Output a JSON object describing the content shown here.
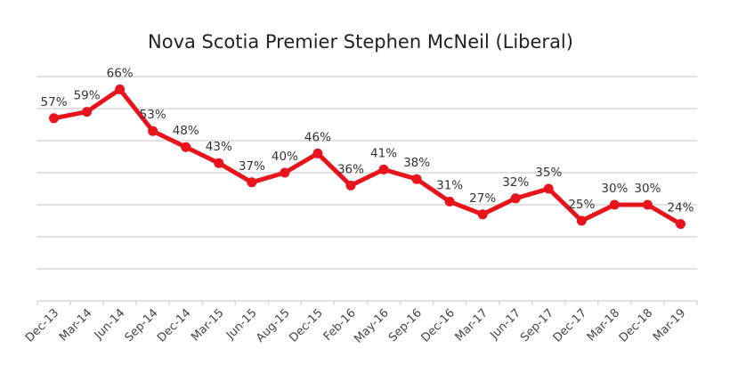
{
  "chart_data": {
    "type": "line",
    "title": "Nova Scotia Premier Stephen McNeil (Liberal)",
    "xlabel": "",
    "ylabel": "",
    "categories": [
      "Dec-13",
      "Mar-14",
      "Jun-14",
      "Sep-14",
      "Dec-14",
      "Mar-15",
      "Jun-15",
      "Aug-15",
      "Dec-15",
      "Feb-16",
      "May-16",
      "Sep-16",
      "Dec-16",
      "Mar-17",
      "Jun-17",
      "Sep-17",
      "Dec-17",
      "Mar-18",
      "Dec-18",
      "Mar-19"
    ],
    "values": [
      57,
      59,
      66,
      53,
      48,
      43,
      37,
      40,
      46,
      36,
      41,
      38,
      31,
      27,
      32,
      35,
      25,
      30,
      30,
      24
    ],
    "data_labels": [
      "57%",
      "59%",
      "66%",
      "53%",
      "48%",
      "43%",
      "37%",
      "40%",
      "46%",
      "36%",
      "41%",
      "38%",
      "31%",
      "27%",
      "32%",
      "35%",
      "25%",
      "30%",
      "30%",
      "24%"
    ],
    "ylim": [
      0,
      70
    ],
    "y_gridlines_step": 10,
    "y_tick_labels_shown": false,
    "grid": true,
    "legend": "none",
    "line_color": "#e8141b",
    "grid_color": "#d9d9d9"
  }
}
